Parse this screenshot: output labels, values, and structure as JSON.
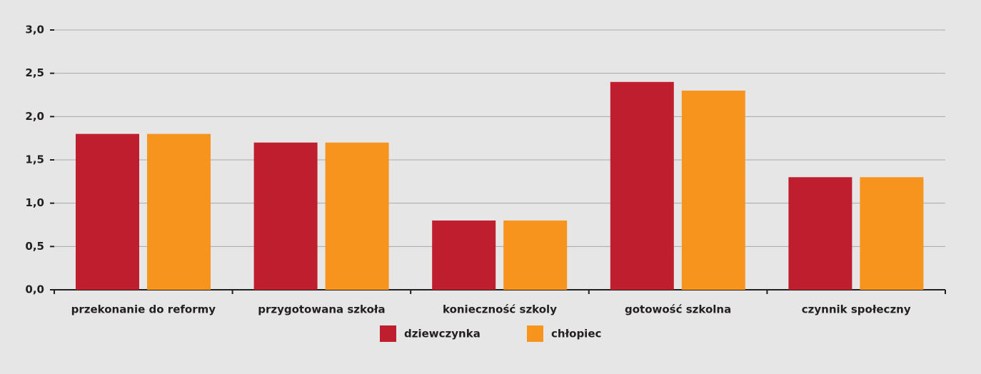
{
  "chart_data": {
    "type": "bar",
    "categories": [
      "przekonanie do reformy",
      "przygotowana szkoła",
      "konieczność szkoly",
      "gotowość szkolna",
      "czynnik społeczny"
    ],
    "series": [
      {
        "name": "dziewczynka",
        "color": "#be1e2d",
        "values": [
          1.8,
          1.7,
          0.8,
          2.4,
          1.3
        ]
      },
      {
        "name": "chłopiec",
        "color": "#f7941d",
        "values": [
          1.8,
          1.7,
          0.8,
          2.3,
          1.3
        ]
      }
    ],
    "ylim": [
      0,
      3
    ],
    "yticks": [
      {
        "value": 0,
        "label": "0,0"
      },
      {
        "value": 0.5,
        "label": "0,5"
      },
      {
        "value": 1,
        "label": "1,0"
      },
      {
        "value": 1.5,
        "label": "1,5"
      },
      {
        "value": 2,
        "label": "2,0"
      },
      {
        "value": 2.5,
        "label": "2,5"
      },
      {
        "value": 3,
        "label": "3,0"
      }
    ],
    "grid": true,
    "legend": "bottom"
  }
}
